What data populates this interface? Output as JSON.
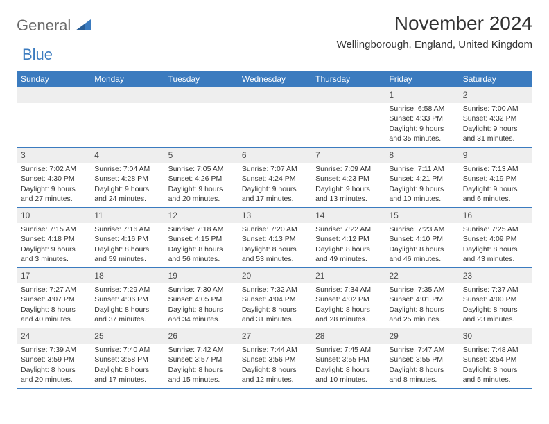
{
  "logo": {
    "part1": "General",
    "part2": "Blue",
    "color1": "#6a6a6a",
    "color2": "#3b7bbf"
  },
  "header": {
    "title": "November 2024",
    "location": "Wellingborough, England, United Kingdom"
  },
  "colors": {
    "header_bg": "#3b7bbf",
    "header_text": "#ffffff",
    "daynum_bg": "#eeeeee",
    "border": "#3b7bbf",
    "body_text": "#333333"
  },
  "dayNames": [
    "Sunday",
    "Monday",
    "Tuesday",
    "Wednesday",
    "Thursday",
    "Friday",
    "Saturday"
  ],
  "weeks": [
    [
      null,
      null,
      null,
      null,
      null,
      {
        "n": "1",
        "sr": "Sunrise: 6:58 AM",
        "ss": "Sunset: 4:33 PM",
        "d1": "Daylight: 9 hours",
        "d2": "and 35 minutes."
      },
      {
        "n": "2",
        "sr": "Sunrise: 7:00 AM",
        "ss": "Sunset: 4:32 PM",
        "d1": "Daylight: 9 hours",
        "d2": "and 31 minutes."
      }
    ],
    [
      {
        "n": "3",
        "sr": "Sunrise: 7:02 AM",
        "ss": "Sunset: 4:30 PM",
        "d1": "Daylight: 9 hours",
        "d2": "and 27 minutes."
      },
      {
        "n": "4",
        "sr": "Sunrise: 7:04 AM",
        "ss": "Sunset: 4:28 PM",
        "d1": "Daylight: 9 hours",
        "d2": "and 24 minutes."
      },
      {
        "n": "5",
        "sr": "Sunrise: 7:05 AM",
        "ss": "Sunset: 4:26 PM",
        "d1": "Daylight: 9 hours",
        "d2": "and 20 minutes."
      },
      {
        "n": "6",
        "sr": "Sunrise: 7:07 AM",
        "ss": "Sunset: 4:24 PM",
        "d1": "Daylight: 9 hours",
        "d2": "and 17 minutes."
      },
      {
        "n": "7",
        "sr": "Sunrise: 7:09 AM",
        "ss": "Sunset: 4:23 PM",
        "d1": "Daylight: 9 hours",
        "d2": "and 13 minutes."
      },
      {
        "n": "8",
        "sr": "Sunrise: 7:11 AM",
        "ss": "Sunset: 4:21 PM",
        "d1": "Daylight: 9 hours",
        "d2": "and 10 minutes."
      },
      {
        "n": "9",
        "sr": "Sunrise: 7:13 AM",
        "ss": "Sunset: 4:19 PM",
        "d1": "Daylight: 9 hours",
        "d2": "and 6 minutes."
      }
    ],
    [
      {
        "n": "10",
        "sr": "Sunrise: 7:15 AM",
        "ss": "Sunset: 4:18 PM",
        "d1": "Daylight: 9 hours",
        "d2": "and 3 minutes."
      },
      {
        "n": "11",
        "sr": "Sunrise: 7:16 AM",
        "ss": "Sunset: 4:16 PM",
        "d1": "Daylight: 8 hours",
        "d2": "and 59 minutes."
      },
      {
        "n": "12",
        "sr": "Sunrise: 7:18 AM",
        "ss": "Sunset: 4:15 PM",
        "d1": "Daylight: 8 hours",
        "d2": "and 56 minutes."
      },
      {
        "n": "13",
        "sr": "Sunrise: 7:20 AM",
        "ss": "Sunset: 4:13 PM",
        "d1": "Daylight: 8 hours",
        "d2": "and 53 minutes."
      },
      {
        "n": "14",
        "sr": "Sunrise: 7:22 AM",
        "ss": "Sunset: 4:12 PM",
        "d1": "Daylight: 8 hours",
        "d2": "and 49 minutes."
      },
      {
        "n": "15",
        "sr": "Sunrise: 7:23 AM",
        "ss": "Sunset: 4:10 PM",
        "d1": "Daylight: 8 hours",
        "d2": "and 46 minutes."
      },
      {
        "n": "16",
        "sr": "Sunrise: 7:25 AM",
        "ss": "Sunset: 4:09 PM",
        "d1": "Daylight: 8 hours",
        "d2": "and 43 minutes."
      }
    ],
    [
      {
        "n": "17",
        "sr": "Sunrise: 7:27 AM",
        "ss": "Sunset: 4:07 PM",
        "d1": "Daylight: 8 hours",
        "d2": "and 40 minutes."
      },
      {
        "n": "18",
        "sr": "Sunrise: 7:29 AM",
        "ss": "Sunset: 4:06 PM",
        "d1": "Daylight: 8 hours",
        "d2": "and 37 minutes."
      },
      {
        "n": "19",
        "sr": "Sunrise: 7:30 AM",
        "ss": "Sunset: 4:05 PM",
        "d1": "Daylight: 8 hours",
        "d2": "and 34 minutes."
      },
      {
        "n": "20",
        "sr": "Sunrise: 7:32 AM",
        "ss": "Sunset: 4:04 PM",
        "d1": "Daylight: 8 hours",
        "d2": "and 31 minutes."
      },
      {
        "n": "21",
        "sr": "Sunrise: 7:34 AM",
        "ss": "Sunset: 4:02 PM",
        "d1": "Daylight: 8 hours",
        "d2": "and 28 minutes."
      },
      {
        "n": "22",
        "sr": "Sunrise: 7:35 AM",
        "ss": "Sunset: 4:01 PM",
        "d1": "Daylight: 8 hours",
        "d2": "and 25 minutes."
      },
      {
        "n": "23",
        "sr": "Sunrise: 7:37 AM",
        "ss": "Sunset: 4:00 PM",
        "d1": "Daylight: 8 hours",
        "d2": "and 23 minutes."
      }
    ],
    [
      {
        "n": "24",
        "sr": "Sunrise: 7:39 AM",
        "ss": "Sunset: 3:59 PM",
        "d1": "Daylight: 8 hours",
        "d2": "and 20 minutes."
      },
      {
        "n": "25",
        "sr": "Sunrise: 7:40 AM",
        "ss": "Sunset: 3:58 PM",
        "d1": "Daylight: 8 hours",
        "d2": "and 17 minutes."
      },
      {
        "n": "26",
        "sr": "Sunrise: 7:42 AM",
        "ss": "Sunset: 3:57 PM",
        "d1": "Daylight: 8 hours",
        "d2": "and 15 minutes."
      },
      {
        "n": "27",
        "sr": "Sunrise: 7:44 AM",
        "ss": "Sunset: 3:56 PM",
        "d1": "Daylight: 8 hours",
        "d2": "and 12 minutes."
      },
      {
        "n": "28",
        "sr": "Sunrise: 7:45 AM",
        "ss": "Sunset: 3:55 PM",
        "d1": "Daylight: 8 hours",
        "d2": "and 10 minutes."
      },
      {
        "n": "29",
        "sr": "Sunrise: 7:47 AM",
        "ss": "Sunset: 3:55 PM",
        "d1": "Daylight: 8 hours",
        "d2": "and 8 minutes."
      },
      {
        "n": "30",
        "sr": "Sunrise: 7:48 AM",
        "ss": "Sunset: 3:54 PM",
        "d1": "Daylight: 8 hours",
        "d2": "and 5 minutes."
      }
    ]
  ]
}
